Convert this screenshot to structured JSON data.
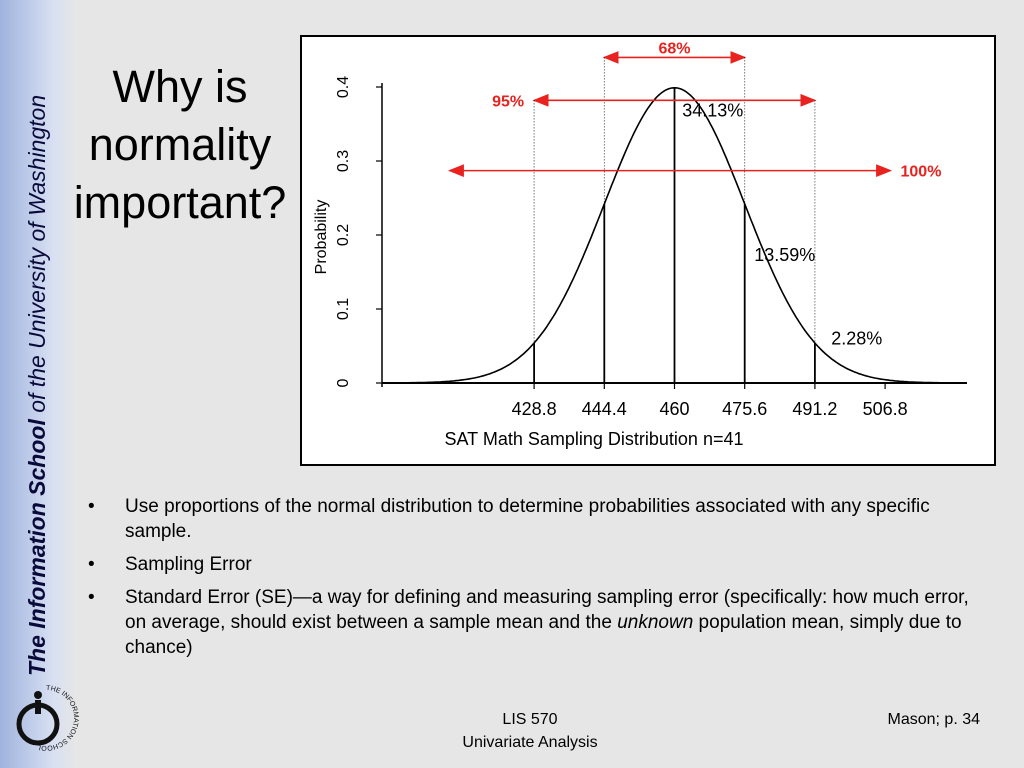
{
  "sidebar": {
    "school_bold": "The Information School",
    "school_rest": " of the University of Washington",
    "logo_ring_text": "THE INFORMATION SCHOOL"
  },
  "slide": {
    "title_line1": "Why is",
    "title_line2": "normality",
    "title_line3": "important?"
  },
  "bullets": [
    {
      "text": "Use proportions of the normal distribution to determine probabilities associated with any specific sample."
    },
    {
      "text": "Sampling Error"
    },
    {
      "text_before": "Standard Error (SE)—a way for defining and measuring sampling error (specifically: how much error, on average, should exist between a sample mean and the ",
      "text_italic": "unknown",
      "text_after": " population mean, simply due to chance)"
    }
  ],
  "footer": {
    "course": "LIS 570",
    "course_title": "Univariate Analysis",
    "source": "Mason; p. 34"
  },
  "chart_data": {
    "type": "line",
    "title": "",
    "xlabel": "SAT Math Sampling Distribution n=41",
    "ylabel": "Probability",
    "mean": 460,
    "sd": 15.6,
    "x_ticks": [
      428.8,
      444.4,
      460,
      475.6,
      491.2,
      506.8
    ],
    "x_tick_labels": [
      "428.8",
      "444.4",
      "460",
      "475.6",
      "491.2",
      "506.8"
    ],
    "y_ticks": [
      0,
      0.1,
      0.2,
      0.3,
      0.4
    ],
    "y_tick_labels": [
      "0",
      "0.1",
      "0.2",
      "0.3",
      "0.4"
    ],
    "xlim": [
      395,
      525
    ],
    "ylim": [
      0,
      0.4
    ],
    "vertical_lines": [
      428.8,
      444.4,
      460,
      475.6,
      491.2
    ],
    "region_labels": [
      {
        "text": "34.13%",
        "x": 468.5,
        "y": 0.36
      },
      {
        "text": "13.59%",
        "x": 484.5,
        "y": 0.165
      },
      {
        "text": "2.28%",
        "x": 500.5,
        "y": 0.052
      }
    ],
    "ranges": [
      {
        "label": "68%",
        "from": 444.4,
        "to": 475.6,
        "y": 0.44,
        "label_position": "above"
      },
      {
        "label": "95%",
        "from": 428.8,
        "to": 491.2,
        "y": 0.382,
        "label_position": "left"
      },
      {
        "label": "100%",
        "from": 410,
        "to": 508,
        "y": 0.287,
        "label_position": "right"
      }
    ],
    "accent_color": "#e8231f",
    "grid": false
  }
}
